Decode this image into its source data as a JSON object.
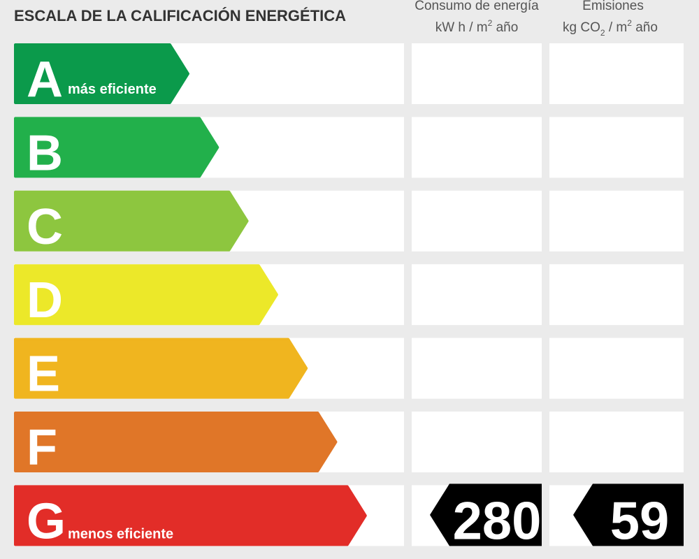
{
  "title": "ESCALA DE LA CALIFICACIÓN ENERGÉTICA",
  "columns": [
    {
      "heading": "Consumo de energía",
      "unit": [
        "kW h  / m",
        "2",
        " año"
      ]
    },
    {
      "heading": "Emisiones",
      "unit": [
        "kg CO",
        "2",
        "  / m",
        "2",
        " año"
      ]
    }
  ],
  "rows": [
    {
      "letter": "A",
      "color": "#0b9a4b",
      "note": "más eficiente"
    },
    {
      "letter": "B",
      "color": "#22b04b"
    },
    {
      "letter": "C",
      "color": "#8dc63f"
    },
    {
      "letter": "D",
      "color": "#ece829"
    },
    {
      "letter": "E",
      "color": "#f0b51f"
    },
    {
      "letter": "F",
      "color": "#e07628"
    },
    {
      "letter": "G",
      "color": "#e22d28",
      "note": "menos eficiente",
      "values": [
        280,
        59
      ]
    }
  ]
}
